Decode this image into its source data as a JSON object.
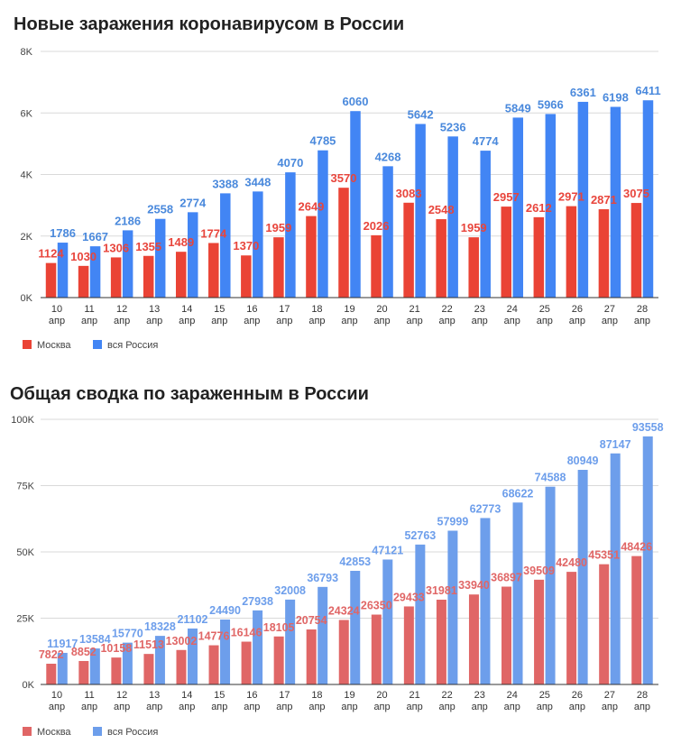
{
  "chart_data": [
    {
      "type": "bar",
      "title": "Новые заражения коронавирусом в России",
      "categories": [
        [
          "10",
          "апр"
        ],
        [
          "11",
          "апр"
        ],
        [
          "12",
          "апр"
        ],
        [
          "13",
          "апр"
        ],
        [
          "14",
          "апр"
        ],
        [
          "15",
          "апр"
        ],
        [
          "16",
          "апр"
        ],
        [
          "17",
          "апр"
        ],
        [
          "18",
          "апр"
        ],
        [
          "19",
          "апр"
        ],
        [
          "20",
          "апр"
        ],
        [
          "21",
          "апр"
        ],
        [
          "22",
          "апр"
        ],
        [
          "23",
          "апр"
        ],
        [
          "24",
          "апр"
        ],
        [
          "25",
          "апр"
        ],
        [
          "26",
          "апр"
        ],
        [
          "27",
          "апр"
        ],
        [
          "28",
          "апр"
        ]
      ],
      "series": [
        {
          "name": "Москва",
          "color": "#ea4335",
          "values": [
            1124,
            1030,
            1306,
            1355,
            1489,
            1774,
            1370,
            1959,
            2649,
            3570,
            2026,
            3083,
            2548,
            1959,
            2957,
            2612,
            2971,
            2871,
            3075
          ]
        },
        {
          "name": "вся Россия",
          "color": "#4285f4",
          "values": [
            1786,
            1667,
            2186,
            2558,
            2774,
            3388,
            3448,
            4070,
            4785,
            6060,
            4268,
            5642,
            5236,
            4774,
            5849,
            5966,
            6361,
            6198,
            6411
          ]
        }
      ],
      "ylim": [
        0,
        8000
      ],
      "yticks": [
        0,
        2000,
        4000,
        6000,
        8000
      ],
      "ytick_labels": [
        "0K",
        "2K",
        "4K",
        "6K",
        "8K"
      ],
      "grid": true,
      "legend": "bottom-left",
      "data_labels": true
    },
    {
      "type": "bar",
      "title": "Общая сводка по зараженным в России",
      "categories": [
        [
          "10",
          "апр"
        ],
        [
          "11",
          "апр"
        ],
        [
          "12",
          "апр"
        ],
        [
          "13",
          "апр"
        ],
        [
          "14",
          "апр"
        ],
        [
          "15",
          "апр"
        ],
        [
          "16",
          "апр"
        ],
        [
          "17",
          "апр"
        ],
        [
          "18",
          "апр"
        ],
        [
          "19",
          "апр"
        ],
        [
          "20",
          "апр"
        ],
        [
          "21",
          "апр"
        ],
        [
          "22",
          "апр"
        ],
        [
          "23",
          "апр"
        ],
        [
          "24",
          "апр"
        ],
        [
          "25",
          "апр"
        ],
        [
          "26",
          "апр"
        ],
        [
          "27",
          "апр"
        ],
        [
          "28",
          "апр"
        ]
      ],
      "series": [
        {
          "name": "Москва",
          "color": "#e06666",
          "values": [
            7822,
            8852,
            10158,
            11513,
            13002,
            14776,
            16146,
            18105,
            20754,
            24324,
            26350,
            29433,
            31981,
            33940,
            36897,
            39509,
            42480,
            45351,
            48426
          ]
        },
        {
          "name": "вся Россия",
          "color": "#6d9eeb",
          "values": [
            11917,
            13584,
            15770,
            18328,
            21102,
            24490,
            27938,
            32008,
            36793,
            42853,
            47121,
            52763,
            57999,
            62773,
            68622,
            74588,
            80949,
            87147,
            93558
          ]
        }
      ],
      "ylim": [
        0,
        100000
      ],
      "yticks": [
        0,
        25000,
        50000,
        75000,
        100000
      ],
      "ytick_labels": [
        "0K",
        "25K",
        "50K",
        "75K",
        "100K"
      ],
      "grid": true,
      "legend": "bottom-left",
      "data_labels": true
    }
  ]
}
